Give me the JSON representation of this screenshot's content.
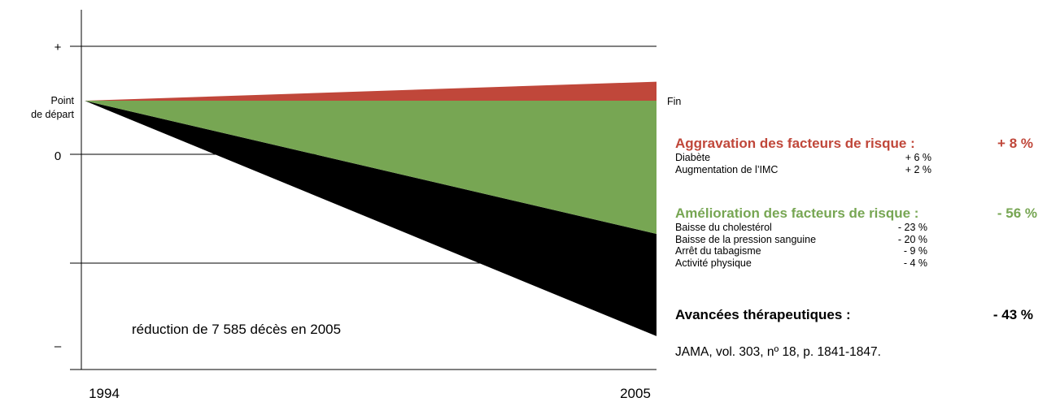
{
  "chart_data": {
    "type": "area",
    "x_labels": [
      "1994",
      "2005"
    ],
    "y_tick_labels": {
      "plus": "+",
      "zero": "0",
      "minus": "–"
    },
    "start_label": [
      "Point",
      "de départ"
    ],
    "end_label": "Fin",
    "annotation": "réduction de 7 585 décès en 2005",
    "series": [
      {
        "name": "Aggravation des facteurs de risque",
        "value": 8,
        "color": "#c0473a"
      },
      {
        "name": "Amélioration des facteurs de risque",
        "value": -56,
        "color": "#77a653"
      },
      {
        "name": "Avancées thérapeutiques",
        "value": -43,
        "color": "#000000"
      }
    ],
    "grid": true
  },
  "legend": {
    "worsening": {
      "title": "Aggravation des facteurs de risque :",
      "value": "+ 8 %",
      "color": "#c0473a",
      "items": [
        {
          "label": "Diabète",
          "value": "+ 6 %"
        },
        {
          "label": "Augmentation de l’IMC",
          "value": "+ 2 %"
        }
      ]
    },
    "improvement": {
      "title": "Amélioration des facteurs de risque :",
      "value": "- 56 %",
      "color": "#77a653",
      "items": [
        {
          "label": "Baisse du cholestérol",
          "value": "- 23 %"
        },
        {
          "label": "Baisse de la pression sanguine",
          "value": "- 20 %"
        },
        {
          "label": "Arrêt du tabagisme",
          "value": "- 9 %"
        },
        {
          "label": "Activité physique",
          "value": "- 4 %"
        }
      ]
    },
    "treatment": {
      "title": "Avancées thérapeutiques :",
      "value": "- 43 %"
    },
    "reference": "JAMA, vol. 303, nº 18, p. 1841-1847."
  }
}
